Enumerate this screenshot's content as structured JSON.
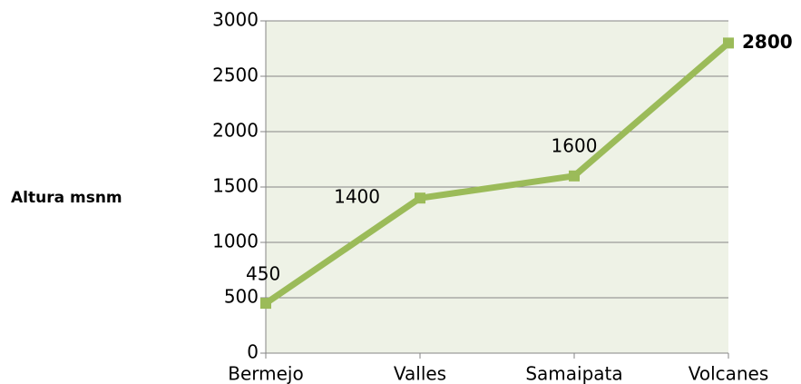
{
  "chart_data": {
    "type": "line",
    "ylabel": "Altura msnm",
    "categories": [
      "Bermejo",
      "Valles",
      "Samaipata",
      "Volcanes"
    ],
    "series": [
      {
        "name": "Altura msnm",
        "color": "#9bbb59",
        "values": [
          450,
          1400,
          1600,
          2800
        ]
      }
    ],
    "ylim": [
      0,
      3000
    ],
    "yticks": [
      0,
      500,
      1000,
      1500,
      2000,
      2500,
      3000
    ],
    "grid": true
  }
}
